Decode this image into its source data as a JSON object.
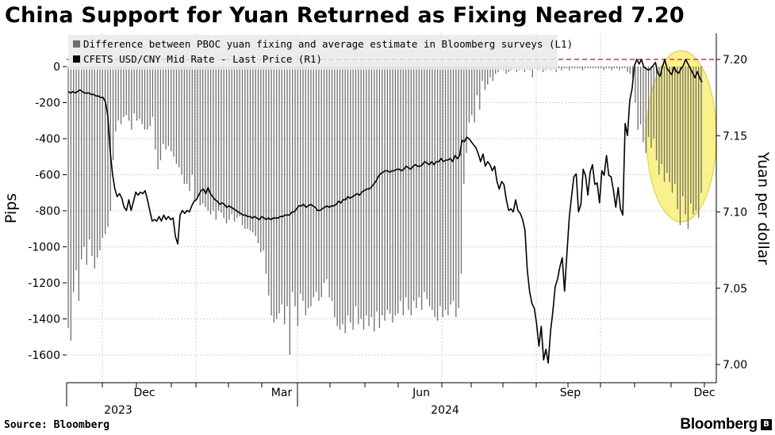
{
  "title": "China Support for Yuan Returned as Fixing Neared 7.20",
  "source": "Source: Bloomberg",
  "brand": "Bloomberg",
  "chart_data": {
    "type": "bar+line",
    "left_axis": {
      "label": "Pips",
      "ylim": [
        -1700,
        150
      ],
      "ticks": [
        0,
        -200,
        -400,
        -600,
        -800,
        -1000,
        -1200,
        -1400,
        -1600
      ]
    },
    "right_axis": {
      "label": "Yuan per dollar",
      "ylim": [
        6.99,
        7.22
      ],
      "ticks": [
        "7.20",
        "7.15",
        "7.10",
        "7.05",
        "7.00"
      ]
    },
    "x_axis": {
      "month_labels": [
        "Dec",
        "Mar",
        "Jun",
        "Sep",
        "Dec"
      ],
      "year_labels": [
        "2023",
        "2024"
      ]
    },
    "grid": true,
    "reference_line": {
      "value": 7.2,
      "color": "#e3344a",
      "style": "dashed"
    },
    "highlight": {
      "shape": "ellipse",
      "color": "#f7ee6a"
    },
    "series": [
      {
        "name": "Difference between PBOC yuan fixing and average estimate in Bloomberg surveys (L1)",
        "type": "bar",
        "color": "#6e6e6e",
        "values": [
          -1450,
          -1520,
          -1250,
          -1130,
          -1300,
          -1070,
          -1000,
          -1100,
          -960,
          -1050,
          -1120,
          -1060,
          -1020,
          -950,
          -930,
          -890,
          -800,
          -520,
          -360,
          -300,
          -320,
          -280,
          -270,
          -300,
          -350,
          -260,
          -300,
          -290,
          -320,
          -350,
          -350,
          -330,
          -280,
          -460,
          -570,
          -520,
          -430,
          -460,
          -440,
          -470,
          -500,
          -540,
          -560,
          -600,
          -650,
          -650,
          -690,
          -600,
          -750,
          -720,
          -770,
          -760,
          -780,
          -800,
          -820,
          -800,
          -850,
          -800,
          -810,
          -840,
          -870,
          -850,
          -820,
          -860,
          -840,
          -830,
          -880,
          -900,
          -900,
          -910,
          -920,
          -940,
          -980,
          -1030,
          -1020,
          -1150,
          -1270,
          -1380,
          -1420,
          -1400,
          -1370,
          -1320,
          -1430,
          -1330,
          -1600,
          -1250,
          -1330,
          -1440,
          -1260,
          -1300,
          -1380,
          -1340,
          -1330,
          -1280,
          -1250,
          -1300,
          -1280,
          -1200,
          -1180,
          -1280,
          -1300,
          -1390,
          -1440,
          -1460,
          -1430,
          -1480,
          -1380,
          -1420,
          -1460,
          -1330,
          -1430,
          -1400,
          -1460,
          -1380,
          -1440,
          -1390,
          -1470,
          -1360,
          -1450,
          -1380,
          -1410,
          -1350,
          -1370,
          -1420,
          -1380,
          -1370,
          -1300,
          -1380,
          -1280,
          -1350,
          -1380,
          -1300,
          -1340,
          -1280,
          -1350,
          -1250,
          -1290,
          -1330,
          -1350,
          -1390,
          -1410,
          -1330,
          -1390,
          -1350,
          -1380,
          -1320,
          -1300,
          -1390,
          -1340,
          -1150,
          -650,
          -480,
          -310,
          -270,
          -310,
          -160,
          -240,
          -80,
          -130,
          -100,
          -60,
          -80,
          -40,
          -30,
          -10,
          -20,
          -40,
          -30,
          -20,
          -10,
          -30,
          -20,
          -10,
          -30,
          -15,
          -20,
          -60,
          -10,
          -20,
          -10,
          -30,
          -20,
          -10,
          -20,
          -10,
          -30,
          -10,
          -20,
          -10,
          -10,
          -20,
          -10,
          -10,
          -10,
          -10,
          -20,
          -10,
          -10,
          -10,
          -10,
          -10,
          -10,
          -10,
          -20,
          -10,
          -10,
          -20,
          -10,
          -10,
          -20,
          -10,
          -10,
          -30,
          -40,
          -60,
          -200,
          -350,
          -320,
          -420,
          -480,
          -390,
          -450,
          -400,
          -520,
          -600,
          -540,
          -640,
          -590,
          -640,
          -700,
          -650,
          -790,
          -880,
          -720,
          -820,
          -900,
          -760,
          -820,
          -800,
          -840,
          -700
        ]
      },
      {
        "name": "CFETS USD/CNY Mid Rate - Last Price (R1)",
        "type": "line",
        "color": "#000000",
        "values": [
          7.179,
          7.178,
          7.179,
          7.178,
          7.179,
          7.18,
          7.179,
          7.178,
          7.178,
          7.178,
          7.177,
          7.177,
          7.176,
          7.176,
          7.175,
          7.175,
          7.172,
          7.163,
          7.14,
          7.125,
          7.115,
          7.11,
          7.112,
          7.109,
          7.103,
          7.101,
          7.108,
          7.101,
          7.107,
          7.113,
          7.111,
          7.113,
          7.112,
          7.114,
          7.108,
          7.101,
          7.094,
          7.095,
          7.094,
          7.097,
          7.094,
          7.098,
          7.095,
          7.097,
          7.095,
          7.096,
          7.084,
          7.079,
          7.098,
          7.101,
          7.099,
          7.101,
          7.1,
          7.104,
          7.107,
          7.108,
          7.111,
          7.114,
          7.115,
          7.112,
          7.116,
          7.112,
          7.11,
          7.108,
          7.107,
          7.105,
          7.106,
          7.105,
          7.103,
          7.104,
          7.103,
          7.102,
          7.101,
          7.1,
          7.099,
          7.098,
          7.098,
          7.097,
          7.097,
          7.096,
          7.097,
          7.096,
          7.095,
          7.097,
          7.096,
          7.095,
          7.096,
          7.095,
          7.096,
          7.096,
          7.096,
          7.097,
          7.097,
          7.098,
          7.098,
          7.098,
          7.1,
          7.1,
          7.102,
          7.104,
          7.104,
          7.105,
          7.103,
          7.104,
          7.105,
          7.104,
          7.103,
          7.101,
          7.101,
          7.102,
          7.103,
          7.104,
          7.103,
          7.104,
          7.104,
          7.105,
          7.107,
          7.106,
          7.108,
          7.108,
          7.11,
          7.109,
          7.11,
          7.111,
          7.112,
          7.111,
          7.113,
          7.114,
          7.115,
          7.115,
          7.116,
          7.118,
          7.12,
          7.123,
          7.125,
          7.126,
          7.127,
          7.127,
          7.126,
          7.127,
          7.127,
          7.128,
          7.128,
          7.127,
          7.128,
          7.13,
          7.129,
          7.128,
          7.13,
          7.131,
          7.13,
          7.13,
          7.131,
          7.133,
          7.132,
          7.131,
          7.133,
          7.131,
          7.133,
          7.133,
          7.135,
          7.133,
          7.134,
          7.134,
          7.135,
          7.133,
          7.137,
          7.135,
          7.137,
          7.147,
          7.146,
          7.149,
          7.148,
          7.146,
          7.144,
          7.142,
          7.138,
          7.133,
          7.138,
          7.13,
          7.133,
          7.131,
          7.127,
          7.13,
          7.12,
          7.115,
          7.12,
          7.118,
          7.108,
          7.101,
          7.102,
          7.1,
          7.108,
          7.101,
          7.099,
          7.095,
          7.088,
          7.062,
          7.048,
          7.04,
          7.037,
          7.027,
          7.012,
          7.025,
          7.003,
          7.01,
          7.001,
          7.022,
          7.035,
          7.051,
          7.056,
          7.064,
          7.07,
          7.048,
          7.072,
          7.096,
          7.11,
          7.123,
          7.125,
          7.1,
          7.105,
          7.128,
          7.124,
          7.111,
          7.126,
          7.131,
          7.118,
          7.119,
          7.106,
          7.127,
          7.124,
          7.137,
          7.124,
          7.123,
          7.114,
          7.103,
          7.116,
          7.102,
          7.098,
          7.158,
          7.15,
          7.173,
          7.181,
          7.196,
          7.2,
          7.197,
          7.2,
          7.195,
          7.194,
          7.193,
          7.194,
          7.196,
          7.198,
          7.191,
          7.189,
          7.195,
          7.2,
          7.194,
          7.192,
          7.19,
          7.195,
          7.192,
          7.191,
          7.194,
          7.196,
          7.2,
          7.197,
          7.194,
          7.191,
          7.188,
          7.192,
          7.188,
          7.185
        ]
      }
    ]
  }
}
